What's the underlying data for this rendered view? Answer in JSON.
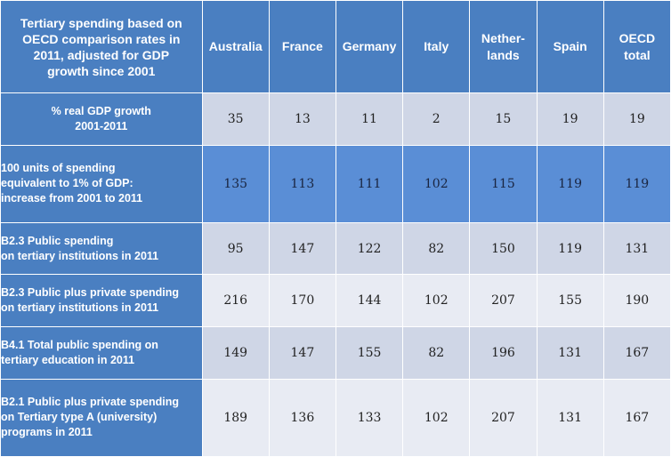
{
  "chart_data": {
    "type": "table",
    "title": "Tertiary spending  based on OECD comparison  rates in 2011, adjusted for GDP growth  since 2001",
    "title_lines": [
      "Tertiary spending  based on",
      "OECD comparison  rates in",
      "2011, adjusted for GDP",
      "growth  since 2001"
    ],
    "columns": [
      {
        "label": "Australia",
        "lines": [
          "Australia"
        ]
      },
      {
        "label": "France",
        "lines": [
          "France"
        ]
      },
      {
        "label": "Germany",
        "lines": [
          "Germany"
        ]
      },
      {
        "label": "Italy",
        "lines": [
          "Italy"
        ]
      },
      {
        "label": "Netherlands",
        "lines": [
          "Nether-",
          "lands"
        ]
      },
      {
        "label": "Spain",
        "lines": [
          "Spain"
        ]
      },
      {
        "label": "OECD total",
        "lines": [
          "OECD",
          "total"
        ]
      }
    ],
    "rows": [
      {
        "label": "% real GDP growth 2001-2011",
        "lines": [
          "% real GDP growth",
          "2001-2011"
        ],
        "centered": true,
        "shade": "a",
        "values": [
          35,
          13,
          11,
          2,
          15,
          19,
          19
        ]
      },
      {
        "label": "100 units of spending equivalent to 1% of GDP: increase from 2001 to 2011",
        "lines": [
          "100 units of spending",
          "equivalent to 1% of GDP:",
          "increase from 2001 to 2011"
        ],
        "centered": false,
        "shade": "hl",
        "values": [
          135,
          113,
          111,
          102,
          115,
          119,
          119
        ]
      },
      {
        "label": "B2.3 Public spending on tertiary institutions in 2011",
        "lines": [
          "B2.3 Public spending",
          "on tertiary institutions in 2011"
        ],
        "centered": false,
        "shade": "a",
        "values": [
          95,
          147,
          122,
          82,
          150,
          119,
          131
        ]
      },
      {
        "label": "B2.3 Public plus private spending on tertiary institutions in 2011",
        "lines": [
          "B2.3 Public plus private spending",
          "on tertiary institutions in 2011"
        ],
        "centered": false,
        "shade": "b",
        "values": [
          216,
          170,
          144,
          102,
          207,
          155,
          190
        ]
      },
      {
        "label": "B4.1 Total public spending on tertiary education in 2011",
        "lines": [
          "B4.1 Total public spending on",
          "tertiary education in 2011"
        ],
        "centered": false,
        "shade": "a",
        "values": [
          149,
          147,
          155,
          82,
          196,
          131,
          167
        ]
      },
      {
        "label": "B2.1 Public plus private spending on Tertiary type A (university) programs in 2011",
        "lines": [
          "B2.1 Public plus private spending",
          "on Tertiary type A (university)",
          "programs in 2011"
        ],
        "centered": false,
        "shade": "b",
        "values": [
          189,
          136,
          133,
          102,
          207,
          131,
          167
        ]
      }
    ],
    "colors": {
      "header": "#4a7fc1",
      "highlight_row": "#5a8ed6",
      "row_shade_a": "#cfd6e6",
      "row_shade_b": "#e8ebf3"
    }
  }
}
